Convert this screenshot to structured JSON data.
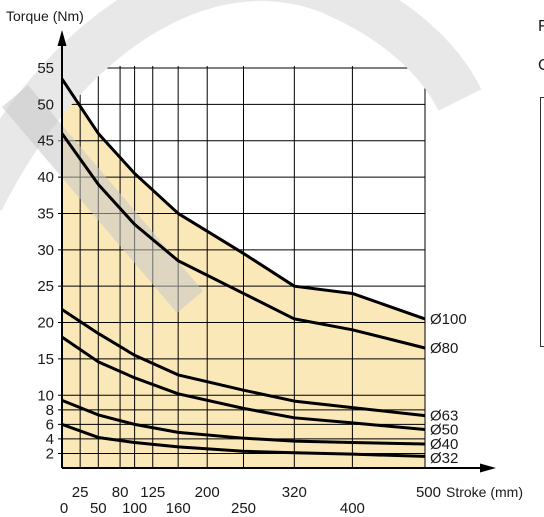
{
  "side": {
    "char1": "F",
    "char2": "C"
  },
  "chart_data": {
    "type": "line",
    "xlabel": "Stroke (mm)",
    "ylabel": "Torque (Nm)",
    "xlim": [
      0,
      500
    ],
    "ylim": [
      0,
      55
    ],
    "x_ticks_row1": [
      25,
      80,
      125,
      200,
      320,
      500
    ],
    "x_ticks_row2": [
      0,
      50,
      100,
      160,
      250,
      400
    ],
    "y_ticks": [
      2,
      4,
      6,
      8,
      10,
      15,
      20,
      25,
      30,
      35,
      40,
      45,
      50,
      55
    ],
    "grid": true,
    "colors": {
      "fill": "#fbe8b8",
      "line": "#000000",
      "grid": "#000000"
    },
    "series": [
      {
        "name": "Ø100",
        "x": [
          0,
          50,
          100,
          160,
          250,
          320,
          400,
          500
        ],
        "y": [
          53.5,
          46,
          40.5,
          35,
          29.5,
          25,
          24,
          20.5
        ]
      },
      {
        "name": "Ø80",
        "x": [
          0,
          50,
          100,
          160,
          250,
          320,
          400,
          500
        ],
        "y": [
          46,
          39,
          33.5,
          28.5,
          24,
          20.5,
          19,
          16.5
        ]
      },
      {
        "name": "Ø63",
        "x": [
          0,
          50,
          100,
          160,
          250,
          320,
          400,
          500
        ],
        "y": [
          21.8,
          18.5,
          15.5,
          12.8,
          10.7,
          9.2,
          8.3,
          7.2
        ]
      },
      {
        "name": "Ø50",
        "x": [
          0,
          50,
          100,
          160,
          250,
          320,
          400,
          500
        ],
        "y": [
          18,
          14.6,
          12.4,
          10.2,
          8.2,
          6.9,
          6.2,
          5.3
        ]
      },
      {
        "name": "Ø40",
        "x": [
          0,
          50,
          100,
          160,
          250,
          320,
          400,
          500
        ],
        "y": [
          9.3,
          7.3,
          6,
          4.9,
          4.1,
          3.7,
          3.5,
          3.3
        ]
      },
      {
        "name": "Ø32",
        "x": [
          0,
          50,
          100,
          160,
          250,
          320,
          400,
          500
        ],
        "y": [
          6,
          4.2,
          3.5,
          2.9,
          2.3,
          2.1,
          1.9,
          1.6
        ]
      }
    ]
  }
}
